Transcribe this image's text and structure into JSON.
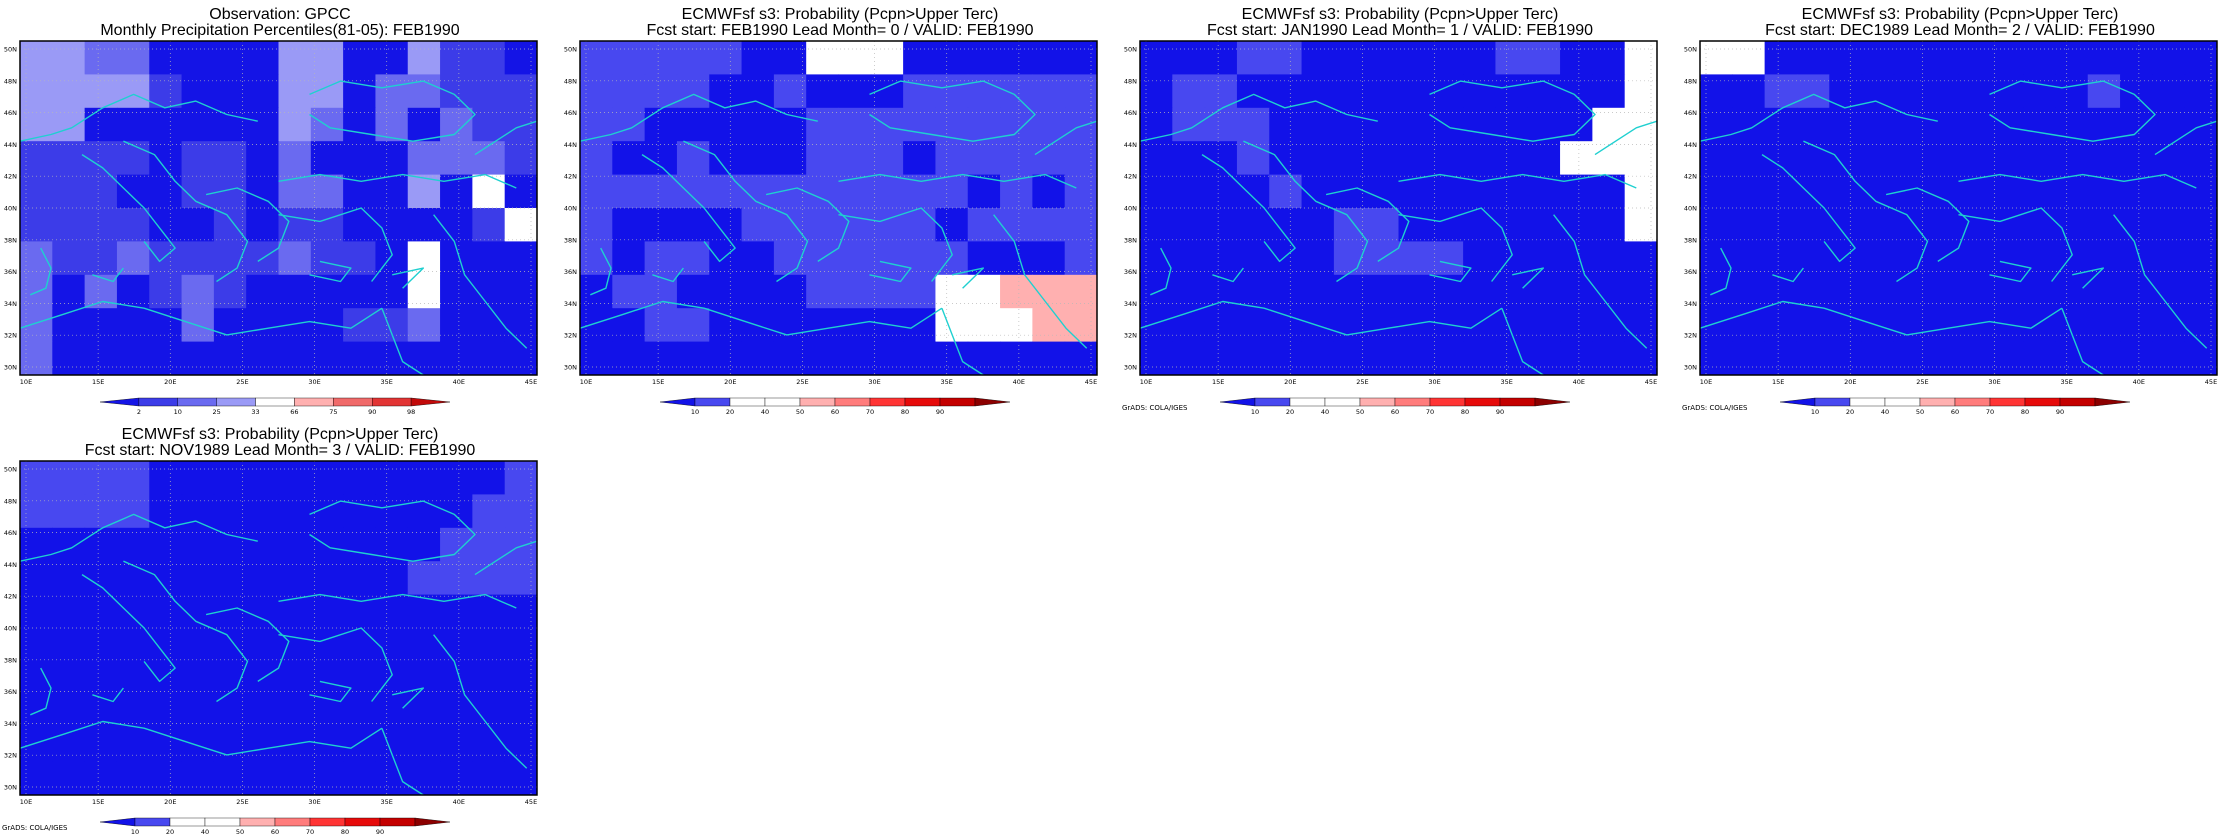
{
  "map_grid": {
    "lat_labels": [
      "50N",
      "48N",
      "46N",
      "44N",
      "42N",
      "40N",
      "38N",
      "36N",
      "34N",
      "32N",
      "30N"
    ],
    "lon_labels": [
      "10E",
      "15E",
      "20E",
      "25E",
      "30E",
      "35E",
      "40E",
      "45E"
    ]
  },
  "colors": {
    "coastline": "#1fd0d0",
    "grid_dots": "#b8b8b8"
  },
  "panels": [
    {
      "id": "obs",
      "title1": "Observation: GPCC",
      "title2": "Monthly Precipitation Percentiles(81-05): FEB1990",
      "credit": "",
      "colorbar": {
        "colors": [
          "#1414e6",
          "#3c3ce8",
          "#6a6af0",
          "#9a9af6",
          "#ffffff",
          "#ffb0b0",
          "#f06a6a",
          "#e23434",
          "#c20a0a"
        ],
        "labels": [
          "2",
          "10",
          "25",
          "33",
          "66",
          "75",
          "90",
          "98"
        ]
      },
      "grid": [
        "3322000033003110",
        "3333100033022111",
        "3300000032020211",
        "1111011020002221",
        "1110011022003040",
        "1111001011000014",
        "2112111121104000",
        "2020121000004000",
        "2000020000112000",
        "2000000000000000"
      ]
    },
    {
      "id": "lead0",
      "title1": "ECMWFsf s3: Probability (Pcpn>Upper Terc)",
      "title2": "Fcst start: FEB1990   Lead Month= 0 / VALID: FEB1990",
      "credit": "",
      "colorbar": {
        "colors": [
          "#1212e8",
          "#4848f0",
          "#ffffff",
          "#ffffff",
          "#ffb0b0",
          "#ff7c7c",
          "#ff3434",
          "#e60a0a",
          "#c40000",
          "#8c0000"
        ],
        "labels": [
          "10",
          "20",
          "40",
          "50",
          "60",
          "70",
          "80",
          "90"
        ]
      },
      "grid": [
        "1111100333000000",
        "1111001000111111",
        "1100000111111111",
        "1001000111011111",
        "1111111111110101",
        "1000011111101111",
        "1011001111110001",
        "0110000111133444",
        "0011000000033344",
        "0000000000000000"
      ]
    },
    {
      "id": "lead1",
      "title1": "ECMWFsf s3: Probability (Pcpn>Upper Terc)",
      "title2": "Fcst start: JAN1990   Lead Month= 1 / VALID: FEB1990",
      "credit": "GrADS: COLA/IGES",
      "colorbar": {
        "colors": [
          "#1212e8",
          "#4848f0",
          "#ffffff",
          "#ffffff",
          "#ffb0b0",
          "#ff7c7c",
          "#ff3434",
          "#e60a0a",
          "#c40000",
          "#8c0000"
        ],
        "labels": [
          "10",
          "20",
          "40",
          "50",
          "60",
          "70",
          "80",
          "90"
        ]
      },
      "grid": [
        "0001100000011003",
        "0110000000000003",
        "0111000000000033",
        "0001000000000333",
        "0000100000000003",
        "0000001100000003",
        "0000001111000000",
        "0000000000000000",
        "0000000000000000",
        "0000000000000000"
      ]
    },
    {
      "id": "lead2",
      "title1": "ECMWFsf s3: Probability (Pcpn>Upper Terc)",
      "title2": "Fcst start: DEC1989   Lead Month= 2 / VALID: FEB1990",
      "credit": "GrADS: COLA/IGES",
      "colorbar": {
        "colors": [
          "#1212e8",
          "#4848f0",
          "#ffffff",
          "#ffffff",
          "#ffb0b0",
          "#ff7c7c",
          "#ff3434",
          "#e60a0a",
          "#c40000",
          "#8c0000"
        ],
        "labels": [
          "10",
          "20",
          "40",
          "50",
          "60",
          "70",
          "80",
          "90"
        ]
      },
      "grid": [
        "3300000000000000",
        "0011000000001000",
        "0000000000000000",
        "0000000000000000",
        "0000000000000000",
        "0000000000000000",
        "0000000000000000",
        "0000000000000000",
        "0000000000000000",
        "0000000000000000"
      ]
    },
    {
      "id": "lead3",
      "title1": "ECMWFsf s3: Probability (Pcpn>Upper Terc)",
      "title2": "Fcst start: NOV1989   Lead Month= 3 / VALID: FEB1990",
      "credit": "GrADS: COLA/IGES",
      "colorbar": {
        "colors": [
          "#1212e8",
          "#4848f0",
          "#ffffff",
          "#ffffff",
          "#ffb0b0",
          "#ff7c7c",
          "#ff3434",
          "#e60a0a",
          "#c40000",
          "#8c0000"
        ],
        "labels": [
          "10",
          "20",
          "40",
          "50",
          "60",
          "70",
          "80",
          "90"
        ]
      },
      "grid": [
        "1111000000000001",
        "1111000000000011",
        "0000000000000111",
        "0000000000001111",
        "0000000000000000",
        "0000000000000000",
        "0000000000000000",
        "0000000000000000",
        "0000000000000000",
        "0000000000000000"
      ]
    }
  ]
}
